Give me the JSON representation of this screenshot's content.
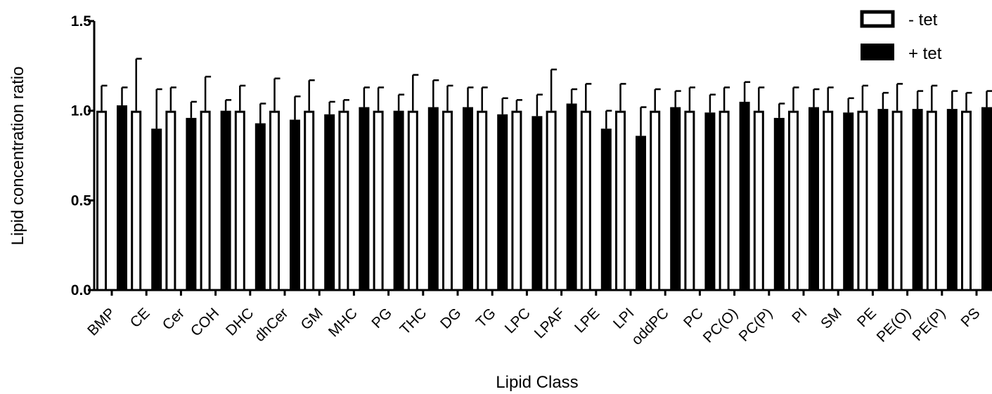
{
  "chart_data": {
    "type": "bar",
    "title": "",
    "xlabel": "Lipid Class",
    "ylabel": "Lipid concentration ratio",
    "ylim": [
      0,
      1.5
    ],
    "yticks": [
      0.0,
      0.5,
      1.0,
      1.5
    ],
    "ytick_labels": [
      "0.0",
      "0.5",
      "1.0",
      "1.5"
    ],
    "legend_position": "top-right",
    "categories": [
      "BMP",
      "CE",
      "Cer",
      "COH",
      "DHC",
      "dhCer",
      "GM",
      "MHC",
      "PG",
      "THC",
      "DG",
      "TG",
      "LPC",
      "LPAF",
      "LPE",
      "LPI",
      "oddPC",
      "PC",
      "PC(O)",
      "PC(P)",
      "PI",
      "SM",
      "PE",
      "PE(O)",
      "PE(P)",
      "PS"
    ],
    "series": [
      {
        "name": "- tet",
        "fill": "#ffffff",
        "stroke": "#000000",
        "values": [
          1.0,
          1.0,
          1.0,
          1.0,
          1.0,
          1.0,
          1.0,
          1.0,
          1.0,
          1.0,
          1.0,
          1.0,
          1.0,
          1.0,
          1.0,
          1.0,
          1.0,
          1.0,
          1.0,
          1.0,
          1.0,
          1.0,
          1.0,
          1.0,
          1.0,
          1.0
        ],
        "error": [
          0.14,
          0.29,
          0.13,
          0.19,
          0.14,
          0.18,
          0.17,
          0.06,
          0.13,
          0.2,
          0.14,
          0.13,
          0.06,
          0.23,
          0.15,
          0.15,
          0.12,
          0.13,
          0.13,
          0.13,
          0.13,
          0.13,
          0.14,
          0.15,
          0.14,
          0.1
        ]
      },
      {
        "name": "+ tet",
        "fill": "#000000",
        "stroke": "#000000",
        "values": [
          1.03,
          0.9,
          0.96,
          1.0,
          0.93,
          0.95,
          0.98,
          1.02,
          1.0,
          1.02,
          1.02,
          0.98,
          0.97,
          1.04,
          0.9,
          0.86,
          1.02,
          0.99,
          1.05,
          0.96,
          1.02,
          0.99,
          1.01,
          1.01,
          1.01,
          1.02
        ],
        "error": [
          0.1,
          0.22,
          0.09,
          0.06,
          0.11,
          0.13,
          0.07,
          0.11,
          0.09,
          0.15,
          0.11,
          0.09,
          0.12,
          0.08,
          0.1,
          0.16,
          0.09,
          0.1,
          0.11,
          0.08,
          0.1,
          0.08,
          0.09,
          0.1,
          0.1,
          0.09
        ]
      }
    ]
  }
}
